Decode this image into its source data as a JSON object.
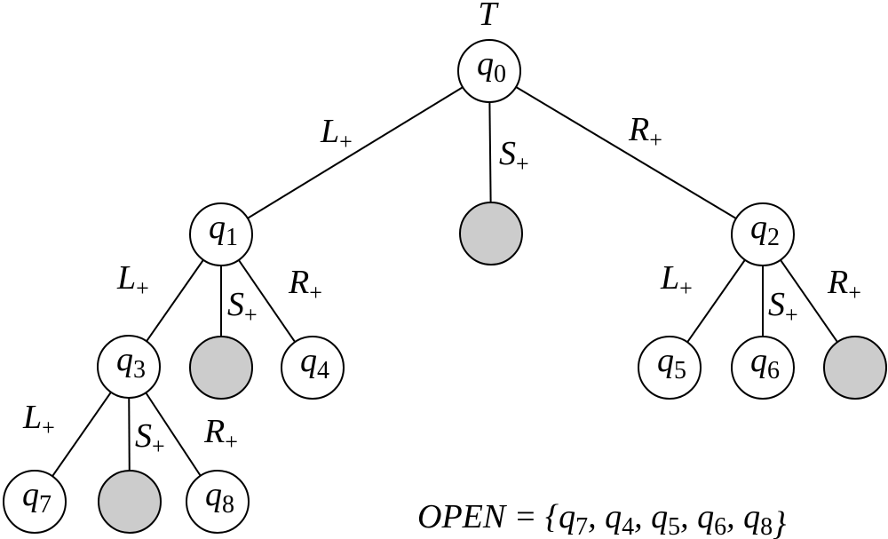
{
  "title": "T",
  "nodes": [
    {
      "id": "q0",
      "name": "q",
      "sub": "0",
      "pruned": false
    },
    {
      "id": "q1",
      "name": "q",
      "sub": "1",
      "pruned": false
    },
    {
      "id": "s0",
      "name": "",
      "sub": "",
      "pruned": true
    },
    {
      "id": "q2",
      "name": "q",
      "sub": "2",
      "pruned": false
    },
    {
      "id": "q3",
      "name": "q",
      "sub": "3",
      "pruned": false
    },
    {
      "id": "s1",
      "name": "",
      "sub": "",
      "pruned": true
    },
    {
      "id": "q4",
      "name": "q",
      "sub": "4",
      "pruned": false
    },
    {
      "id": "q5",
      "name": "q",
      "sub": "5",
      "pruned": false
    },
    {
      "id": "q6",
      "name": "q",
      "sub": "6",
      "pruned": false
    },
    {
      "id": "s2",
      "name": "",
      "sub": "",
      "pruned": true
    },
    {
      "id": "q7",
      "name": "q",
      "sub": "7",
      "pruned": false
    },
    {
      "id": "s3",
      "name": "",
      "sub": "",
      "pruned": true
    },
    {
      "id": "q8",
      "name": "q",
      "sub": "8",
      "pruned": false
    }
  ],
  "edges": [
    {
      "from": "q0",
      "to": "q1",
      "label": "L",
      "sign": "+"
    },
    {
      "from": "q0",
      "to": "s0",
      "label": "S",
      "sign": "+"
    },
    {
      "from": "q0",
      "to": "q2",
      "label": "R",
      "sign": "+"
    },
    {
      "from": "q1",
      "to": "q3",
      "label": "L",
      "sign": "+"
    },
    {
      "from": "q1",
      "to": "s1",
      "label": "S",
      "sign": "+"
    },
    {
      "from": "q1",
      "to": "q4",
      "label": "R",
      "sign": "+"
    },
    {
      "from": "q2",
      "to": "q5",
      "label": "L",
      "sign": "+"
    },
    {
      "from": "q2",
      "to": "q6",
      "label": "S",
      "sign": "+"
    },
    {
      "from": "q2",
      "to": "s2",
      "label": "R",
      "sign": "+"
    },
    {
      "from": "q3",
      "to": "q7",
      "label": "L",
      "sign": "+"
    },
    {
      "from": "q3",
      "to": "s3",
      "label": "S",
      "sign": "+"
    },
    {
      "from": "q3",
      "to": "q8",
      "label": "R",
      "sign": "+"
    }
  ],
  "open_set": {
    "name": "OPEN",
    "equals": " = {",
    "close": "}",
    "separator": ", ",
    "items": [
      {
        "name": "q",
        "sub": "7"
      },
      {
        "name": "q",
        "sub": "4"
      },
      {
        "name": "q",
        "sub": "5"
      },
      {
        "name": "q",
        "sub": "6"
      },
      {
        "name": "q",
        "sub": "8"
      }
    ]
  },
  "colors": {
    "pruned_fill": "#cccccc",
    "node_fill": "#ffffff",
    "stroke": "#000000"
  }
}
